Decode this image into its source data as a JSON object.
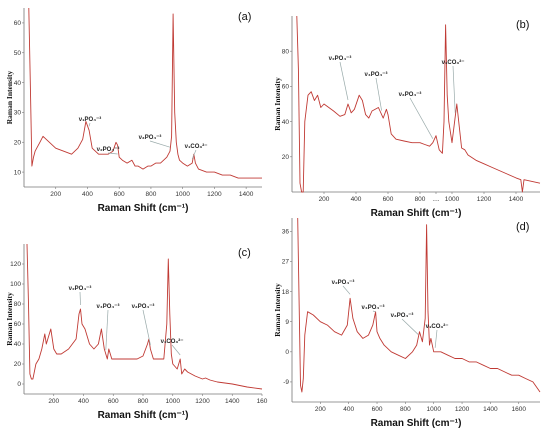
{
  "chart_data": [
    {
      "type": "line",
      "panel_label": "(a)",
      "xlabel": "Raman Shift (cm⁻¹)",
      "ylabel": "Raman Intensity",
      "xlim": [
        0,
        1500
      ],
      "ylim": [
        5,
        65
      ],
      "x_ticks": [
        "200",
        "400",
        "600",
        "800",
        "1000",
        "1200",
        "1400"
      ],
      "y_ticks": [
        "10",
        "20",
        "30",
        "40",
        "50",
        "60"
      ],
      "annotations": [
        "ν₁PO₄⁻³",
        "ν₂PO₄⁻³",
        "ν₃PO₄⁻³",
        "ν₁CO₃²⁻"
      ],
      "series": [
        {
          "x": [
            30,
            40,
            50,
            60,
            70,
            80,
            100,
            120,
            140,
            160,
            200,
            250,
            300,
            340,
            370,
            390,
            410,
            430,
            450,
            470,
            500,
            530,
            560,
            580,
            590,
            600,
            620,
            650,
            680,
            700,
            720,
            750,
            780,
            800,
            830,
            860,
            880,
            900,
            920,
            930,
            940,
            950,
            960,
            970,
            980,
            1000,
            1030,
            1060,
            1070,
            1080,
            1100,
            1150,
            1200,
            1250,
            1300,
            1350,
            1400,
            1450,
            1500
          ],
          "y": [
            65,
            40,
            12,
            15,
            17,
            18,
            20,
            22,
            21,
            20,
            18,
            17,
            16,
            18,
            21,
            27,
            24,
            18,
            17,
            16,
            16,
            16,
            17,
            20,
            19,
            15,
            14,
            13,
            14,
            12,
            12,
            11,
            12,
            12,
            13,
            13,
            14,
            15,
            17,
            22,
            63,
            30,
            20,
            16,
            14,
            13,
            12,
            13,
            16,
            13,
            11,
            10,
            10,
            9,
            9,
            8,
            8,
            8,
            8
          ]
        }
      ]
    },
    {
      "type": "line",
      "panel_label": "(b)",
      "xlabel": "Raman Shift (cm⁻¹)",
      "ylabel": "Raman Intensity",
      "xlim": [
        0,
        1550
      ],
      "ylim": [
        0,
        100
      ],
      "x_ticks": [
        "200",
        "400",
        "600",
        "800",
        "....",
        "1000",
        "1200",
        "1400"
      ],
      "y_ticks": [
        "20",
        "40",
        "60",
        "80"
      ],
      "annotations": [
        "ν₂PO₄⁻³",
        "ν₄PO₄⁻³",
        "ν₃PO₄⁻³",
        "ν₁CO₃²⁻"
      ],
      "series": [
        {
          "x": [
            30,
            40,
            50,
            60,
            70,
            80,
            100,
            120,
            140,
            160,
            180,
            200,
            230,
            260,
            300,
            330,
            350,
            370,
            390,
            420,
            440,
            460,
            480,
            500,
            540,
            570,
            590,
            600,
            620,
            650,
            700,
            750,
            800,
            830,
            860,
            880,
            900,
            920,
            940,
            950,
            960,
            970,
            980,
            1000,
            1030,
            1060,
            1080,
            1100,
            1150,
            1200,
            1250,
            1300,
            1350,
            1400,
            1430,
            1440,
            1450,
            1500,
            1550
          ],
          "y": [
            100,
            70,
            5,
            0,
            0,
            40,
            55,
            57,
            52,
            55,
            48,
            50,
            48,
            46,
            43,
            44,
            50,
            45,
            47,
            55,
            52,
            44,
            42,
            46,
            48,
            42,
            47,
            44,
            33,
            30,
            29,
            28,
            28,
            27,
            26,
            28,
            32,
            24,
            22,
            40,
            95,
            55,
            40,
            28,
            50,
            25,
            24,
            21,
            18,
            16,
            14,
            12,
            10,
            8,
            7,
            -2,
            7,
            6,
            5
          ]
        }
      ]
    },
    {
      "type": "line",
      "panel_label": "(c)",
      "xlabel": "Raman Shift (cm⁻¹)",
      "ylabel": "Raman Intensity",
      "xlim": [
        0,
        1600
      ],
      "ylim": [
        -10,
        140
      ],
      "x_ticks": [
        "200",
        "400",
        "600",
        "800",
        "1000",
        "1200",
        "1400",
        "160"
      ],
      "y_ticks": [
        "0",
        "20",
        "40",
        "60",
        "80",
        "100",
        "120"
      ],
      "annotations": [
        "ν₂PO₄⁻³",
        "ν₄PO₄⁻³",
        "ν₃PO₄⁻³",
        "ν₁CO₃²⁻"
      ],
      "series": [
        {
          "x": [
            20,
            30,
            40,
            50,
            60,
            80,
            100,
            120,
            140,
            150,
            170,
            180,
            200,
            220,
            250,
            300,
            350,
            370,
            380,
            390,
            410,
            440,
            470,
            500,
            520,
            540,
            560,
            570,
            590,
            620,
            680,
            720,
            760,
            800,
            830,
            840,
            850,
            870,
            900,
            940,
            960,
            970,
            980,
            990,
            1000,
            1030,
            1050,
            1060,
            1080,
            1100,
            1150,
            1200,
            1220,
            1250,
            1300,
            1400,
            1500,
            1600
          ],
          "y": [
            140,
            80,
            10,
            5,
            5,
            20,
            25,
            35,
            50,
            40,
            50,
            55,
            35,
            30,
            30,
            35,
            45,
            70,
            75,
            60,
            55,
            40,
            35,
            40,
            55,
            35,
            25,
            35,
            25,
            25,
            25,
            25,
            25,
            28,
            40,
            45,
            35,
            25,
            25,
            25,
            60,
            125,
            70,
            30,
            20,
            15,
            25,
            10,
            15,
            12,
            8,
            5,
            6,
            4,
            2,
            0,
            -3,
            -5
          ]
        }
      ]
    },
    {
      "type": "line",
      "panel_label": "(d)",
      "xlabel": "Raman Shift (cm⁻¹)",
      "ylabel": "Raman Intensity",
      "xlim": [
        0,
        1750
      ],
      "ylim": [
        -15,
        40
      ],
      "x_ticks": [
        "200",
        "400",
        "600",
        "800",
        "1000",
        "1200",
        "1400",
        "1600"
      ],
      "y_ticks": [
        "-9",
        "0",
        "9",
        "18",
        "27",
        "36"
      ],
      "annotations": [
        "ν₂PO₄⁻³",
        "ν₄PO₄⁻³",
        "ν₃PO₄⁻³",
        "ν₁CO₃²⁻"
      ],
      "series": [
        {
          "x": [
            40,
            60,
            70,
            80,
            90,
            110,
            150,
            200,
            250,
            300,
            350,
            390,
            410,
            430,
            460,
            500,
            540,
            570,
            590,
            600,
            620,
            650,
            700,
            750,
            800,
            850,
            880,
            900,
            920,
            940,
            950,
            960,
            970,
            980,
            1000,
            1050,
            1100,
            1150,
            1200,
            1250,
            1300,
            1350,
            1400,
            1450,
            1500,
            1550,
            1600,
            1650,
            1700,
            1750
          ],
          "y": [
            40,
            -10,
            -12,
            -8,
            5,
            12,
            11,
            9,
            8,
            6,
            5,
            8,
            16,
            10,
            6,
            4,
            5,
            8,
            12,
            6,
            4,
            2,
            0,
            -1,
            -2,
            0,
            2,
            6,
            3,
            10,
            38,
            12,
            2,
            4,
            0,
            0,
            -1,
            -2,
            -2,
            -3,
            -3,
            -4,
            -5,
            -5,
            -6,
            -7,
            -7,
            -8,
            -9,
            -12
          ]
        }
      ]
    }
  ]
}
